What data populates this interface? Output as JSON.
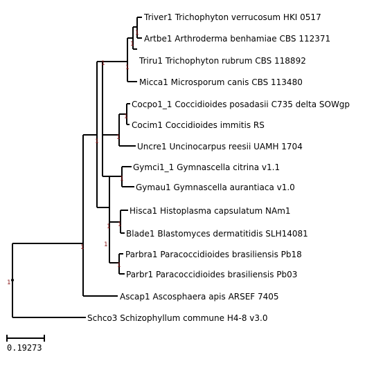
{
  "tree": {
    "leaves": [
      "Triver1 Trichophyton verrucosum HKI 0517",
      "Artbe1 Arthroderma benhamiae CBS 112371",
      "Triru1 Trichophyton rubrum CBS 118892",
      "Micca1 Microsporum canis CBS 113480",
      "Cocpo1_1 Coccidioides posadasii C735 delta SOWgp",
      "Cocim1 Coccidioides immitis RS",
      "Uncre1 Uncinocarpus reesii UAMH 1704",
      "Gymci1_1 Gymnascella citrina v1.1",
      "Gymau1 Gymnascella aurantiaca v1.0",
      "Hisca1 Histoplasma capsulatum NAm1",
      "Blade1 Blastomyces dermatitidis SLH14081",
      "Parbra1 Paracoccidioides brasiliensis Pb18",
      "Parbr1 Paracoccidioides brasiliensis Pb03",
      "Ascap1 Ascosphaera apis ARSEF 7405",
      "Schco3 Schizophyllum commune H4-8 v3.0"
    ],
    "support_value": "1",
    "scale_bar_label": "0.19273"
  }
}
